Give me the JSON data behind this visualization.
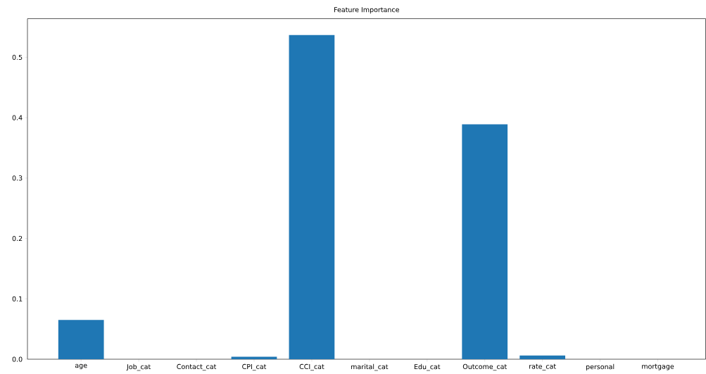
{
  "chart_data": {
    "type": "bar",
    "title": "Feature Importance",
    "categories": [
      "age",
      "Job_cat",
      "Contact_cat",
      "CPI_cat",
      "CCI_cat",
      "marital_cat",
      "Edu_cat",
      "Outcome_cat",
      "rate_cat",
      "personal",
      "mortgage"
    ],
    "values": [
      0.065,
      0,
      0,
      0.004,
      0.537,
      0,
      0,
      0.389,
      0.006,
      0,
      0
    ],
    "color": "#1f77b4",
    "ylim": [
      0,
      0.564
    ],
    "yticks": [
      {
        "value": 0,
        "label": "0.0"
      },
      {
        "value": 0.1,
        "label": "0.1"
      },
      {
        "value": 0.2,
        "label": "0.2"
      },
      {
        "value": 0.3,
        "label": "0.3"
      },
      {
        "value": 0.4,
        "label": "0.4"
      },
      {
        "value": 0.5,
        "label": "0.5"
      }
    ],
    "grid": false
  }
}
